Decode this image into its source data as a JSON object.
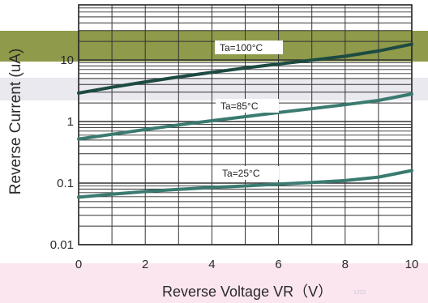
{
  "chart_data": {
    "type": "line",
    "xlabel": "Reverse Voltage VR（V）",
    "ylabel": "Reverse Current (uA)",
    "y_scale": "log",
    "xlim": [
      0,
      10
    ],
    "ylim": [
      0.01,
      100
    ],
    "x_ticks": [
      "0",
      "2",
      "4",
      "6",
      "8",
      "10"
    ],
    "y_ticks": [
      "0.01",
      "0.1",
      "1",
      "10"
    ],
    "grid": true,
    "series": [
      {
        "name": "Ta=100°C",
        "color": "#1d4a42",
        "x": [
          0,
          1,
          2,
          3,
          4,
          5,
          6,
          7,
          8,
          9,
          10
        ],
        "y": [
          2.9,
          3.6,
          4.4,
          5.3,
          6.3,
          7.4,
          8.6,
          9.9,
          11.5,
          14,
          18
        ]
      },
      {
        "name": "Ta=85°C",
        "color": "#3a7a70",
        "x": [
          0,
          1,
          2,
          3,
          4,
          5,
          6,
          7,
          8,
          9,
          10
        ],
        "y": [
          0.52,
          0.62,
          0.74,
          0.88,
          1.03,
          1.2,
          1.4,
          1.62,
          1.88,
          2.2,
          2.8
        ]
      },
      {
        "name": "Ta=25°C",
        "color": "#3a7a70",
        "x": [
          0,
          1,
          2,
          3,
          4,
          5,
          6,
          7,
          8,
          9,
          10
        ],
        "y": [
          0.059,
          0.066,
          0.073,
          0.079,
          0.085,
          0.09,
          0.096,
          0.102,
          0.11,
          0.125,
          0.16
        ]
      }
    ]
  },
  "watermark": "1222"
}
